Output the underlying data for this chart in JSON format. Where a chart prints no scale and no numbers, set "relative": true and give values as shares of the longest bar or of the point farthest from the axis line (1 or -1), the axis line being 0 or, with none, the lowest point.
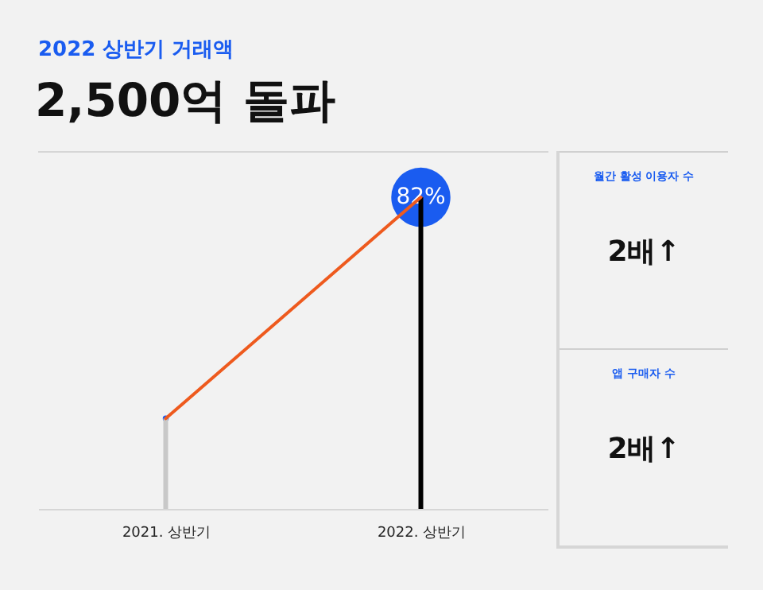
{
  "chart_data": [
    {
      "type": "bar",
      "title": "2,500억 돌파",
      "subtitle": "2022 상반기 거래액",
      "categories": [
        "2021. 상반기",
        "2022. 상반기"
      ],
      "relative": true,
      "series": [
        {
          "type": "bar",
          "colors": [
            "#c8c8c8",
            "#000000"
          ],
          "values": [
            0.29,
            1
          ]
        },
        {
          "type": "line",
          "color": "#ee5a1e",
          "values": [
            0.29,
            1
          ]
        },
        {
          "type": "bubble",
          "color": "#1a5cf0",
          "values": [
            0.29,
            1
          ],
          "sizes": [
            0.01,
            1
          ]
        }
      ],
      "annotations": [
        {
          "text": "82%",
          "x": "2022. 상반기",
          "y": 1
        }
      ]
    },
    {
      "type": "other",
      "annotations": [
        "월간 활성 이용자 수",
        "2배↑",
        "앱 구매자 수",
        "2배↑"
      ]
    }
  ]
}
